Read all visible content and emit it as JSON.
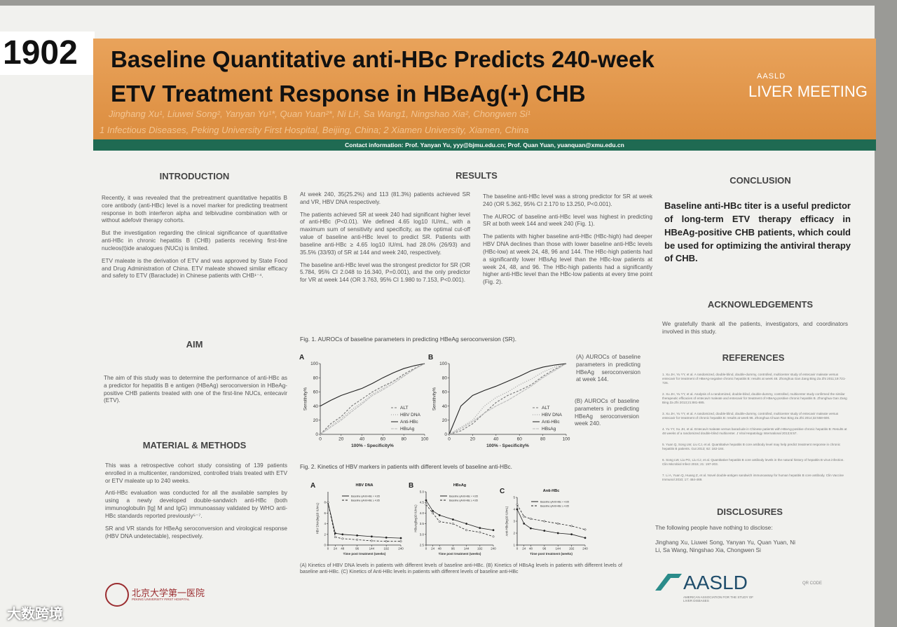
{
  "poster_number": "1902",
  "header": {
    "title_line1": "Baseline Quantitative anti-HBc Predicts 240-week",
    "title_line2": "ETV Treatment Response in HBeAg(+) CHB",
    "authors": "Jinghang Xu¹, Liuwei Song², Yanyan Yu¹*, Quan Yuan²*, Ni Li¹, Sa Wang1, Ningshao Xia², Chongwen Si¹",
    "affiliations": "1 Infectious Diseases, Peking University First Hospital, Beijing, China; 2 Xiamen University, Xiamen, China",
    "contact": "Contact information: Prof. Yanyan Yu, yyy@bjmu.edu.cn; Prof. Quan Yuan, yuanquan@xmu.edu.cn",
    "logo_line1": "AASLD",
    "logo_line2": "LIVER MEETING"
  },
  "introduction": {
    "heading": "INTRODUCTION",
    "paragraphs": [
      "Recently, it was revealed that the pretreatment quantitative hepatitis B core antibody (anti-HBc) level is a novel marker for predicting treatment response in both interferon alpha and telbivudine combination with or without adefovir therapy cohorts.",
      "But the investigation regarding the clinical significance of quantitative anti-HBc in chronic hepatitis B (CHB) patients receiving first-line nucleos(t)ide analogues (NUCs) is limited.",
      "ETV maleate is the derivation of ETV and was approved by State Food and Drug Administration of China. ETV maleate showed similar efficacy and safety  to ETV (Baraclude) in Chinese patients with CHB¹⁻⁴."
    ]
  },
  "aim": {
    "heading": "AIM",
    "paragraphs": [
      "The aim of this study was to determine the performance of anti-HBc as a predictor for hepatitis B e antigen (HBeAg) seroconversion in HBeAg-positive CHB patients treated with one of the first-line NUCs, entecavir (ETV)."
    ]
  },
  "methods": {
    "heading": "MATERIAL & METHODS",
    "paragraphs": [
      "This was a retrospective cohort study consisting of 139 patients enrolled in a multicenter, randomized, controlled trials treated with ETV or ETV maleate up to 240 weeks.",
      "Anti-HBc evaluation was conducted for all the available samples by using a newly developed double-sandwich anti-HBc (both immunoglobulin [Ig] M and IgG) immunoassay validated by WHO anti-HBc standards reported previously⁵⁻⁷.",
      "SR and VR stands for HBeAg seroconversion and virological response (HBV DNA undetectable), respectively."
    ]
  },
  "results": {
    "heading": "RESULTS",
    "col1": [
      "At week 240, 35(25.2%) and 113 (81.3%) patients achieved SR and VR, HBV DNA  respectively.",
      "The patients achieved SR at week 240 had significant higher level of anti-HBc (P<0.01). We defined 4.65 log10 IU/mL, with a maximum sum of sensitivity and specificity, as the optimal cut-off value of baseline anti-HBc level to predict SR. Patients with baseline anti-HBc ≥ 4.65 log10 IU/mL had 28.0% (26/93) and 35.5% (33/93) of SR at 144 and week 240, respectively.",
      "The baseline anti-HBc level was the strongest predictor for SR (OR 5.784, 95% CI 2.048 to 16.340, P=0.001), and the only predictor for VR at week 144 (OR 3.763, 95% CI 1.980 to 7.153, P<0.001)."
    ],
    "col2": [
      "The baseline anti-HBc level was a strong predictor for SR at week 240 (OR 5.362, 95% CI 2.170 to 13.250, P<0.001).",
      "The AUROC of baseline anti-HBc level was highest in predicting SR at both week 144 and week 240 (Fig. 1).",
      "The patients with higher baseline anti-HBc (HBc-high) had deeper HBV DNA declines than those with lower baseline anti-HBc levels (HBc-low) at week 24, 48, 96 and 144. The HBc-high patients had a significantly lower HBsAg level than the HBc-low patients at week 24, 48, and 96. The HBc-high patients had a significantly higher anti-HBc level than the HBc-low patients at every time point (Fig. 2)."
    ],
    "fig1": {
      "caption": "Fig. 1. AUROCs of baseline parameters in predicting HBeAg seroconversion (SR).",
      "note_a": "(A) AUROCs of baseline parameters in predicting HBeAg seroconversion at week 144.",
      "note_b": "(B) AUROCs of baseline parameters in predicting HBeAg seroconversion week 240.",
      "panels": [
        {
          "letter": "A",
          "x_label": "100% - Specificity%",
          "y_label": "Sensitivity%",
          "xlim": [
            0,
            100
          ],
          "ylim": [
            0,
            100
          ],
          "xticks": [
            0,
            20,
            40,
            60,
            80,
            100
          ],
          "yticks": [
            0,
            20,
            40,
            60,
            80,
            100
          ],
          "x": [
            0,
            10,
            20,
            30,
            40,
            50,
            60,
            70,
            80,
            90,
            100
          ],
          "series": [
            {
              "name": "ALT",
              "color": "#777777",
              "dash": "3,2",
              "values": [
                0,
                15,
                25,
                40,
                50,
                60,
                68,
                75,
                85,
                93,
                100
              ]
            },
            {
              "name": "HBV DNA",
              "color": "#999999",
              "dash": "1,2",
              "values": [
                0,
                12,
                22,
                35,
                45,
                57,
                65,
                75,
                83,
                92,
                100
              ]
            },
            {
              "name": "Anti-HBc",
              "color": "#222222",
              "dash": "none",
              "values": [
                40,
                48,
                55,
                60,
                65,
                72,
                80,
                87,
                93,
                97,
                100
              ]
            },
            {
              "name": "HBsAg",
              "color": "#bbbbbb",
              "dash": "4,1",
              "values": [
                0,
                10,
                20,
                32,
                43,
                55,
                63,
                72,
                82,
                92,
                100
              ]
            }
          ]
        },
        {
          "letter": "B",
          "x_label": "100% - Specificity%",
          "y_label": "Sensitivity%",
          "xlim": [
            0,
            100
          ],
          "ylim": [
            0,
            100
          ],
          "xticks": [
            0,
            20,
            40,
            60,
            80,
            100
          ],
          "yticks": [
            0,
            20,
            40,
            60,
            80,
            100
          ],
          "x": [
            0,
            10,
            20,
            30,
            40,
            50,
            60,
            70,
            80,
            90,
            100
          ],
          "series": [
            {
              "name": "ALT",
              "color": "#777777",
              "dash": "3,2",
              "values": [
                0,
                5,
                15,
                30,
                45,
                55,
                62,
                70,
                82,
                92,
                100
              ]
            },
            {
              "name": "HBV DNA",
              "color": "#999999",
              "dash": "1,2",
              "values": [
                0,
                10,
                20,
                40,
                52,
                60,
                70,
                78,
                88,
                95,
                100
              ]
            },
            {
              "name": "Anti-HBc",
              "color": "#222222",
              "dash": "none",
              "values": [
                0,
                40,
                55,
                62,
                68,
                75,
                82,
                90,
                95,
                98,
                100
              ]
            },
            {
              "name": "HBsAg",
              "color": "#bbbbbb",
              "dash": "4,1",
              "values": [
                0,
                8,
                18,
                30,
                40,
                48,
                58,
                68,
                80,
                90,
                100
              ]
            }
          ]
        }
      ]
    },
    "fig2": {
      "caption": "Fig. 2. Kinetics of HBV markers in patients with different levels of baseline anti-HBc.",
      "footnote": "(A) Kinetics of HBV DNA levels in patients with different levels of baseline anti-HBc. (B) Kinetics of HBsAg levels in patients with different levels of baseline anti-HBc. (C) Kinetics of Anti-HBc levels in patients with different levels of baseline anti-HBc",
      "panels": [
        {
          "letter": "A",
          "title": "HBV DNA",
          "x_label": "Time post treatment (weeks)",
          "y_label": "HBV DNA(log10 IU/mL)",
          "xlim": [
            0,
            240
          ],
          "ylim": [
            0,
            10
          ],
          "xticks": [
            0,
            24,
            48,
            96,
            144,
            192,
            240
          ],
          "yticks": [
            0,
            2,
            4,
            6,
            8
          ],
          "x": [
            0,
            24,
            48,
            96,
            144,
            192,
            240
          ],
          "series": [
            {
              "name": "Baseline qAnti-HBc < 4.65",
              "color": "#222222",
              "dash": "none",
              "values": [
                8,
                2.2,
                2,
                1.8,
                1.6,
                1.4,
                1.3
              ]
            },
            {
              "name": "Baseline qAnti-HBc ≥ 4.65",
              "color": "#222222",
              "dash": "3,2",
              "values": [
                8,
                1.5,
                1.2,
                1,
                0.8,
                0.7,
                0.7
              ]
            }
          ]
        },
        {
          "letter": "B",
          "title": "HBsAg",
          "x_label": "Time post treatment (weeks)",
          "y_label": "HBsAg(log10 IU/mL)",
          "xlim": [
            0,
            240
          ],
          "ylim": [
            2.5,
            5
          ],
          "xticks": [
            0,
            24,
            48,
            96,
            144,
            192,
            240
          ],
          "yticks": [
            2.5,
            {
              "value": 3,
              "label": "3.0"
            },
            3.5,
            {
              "value": 4,
              "label": "4.0"
            },
            4.5,
            {
              "value": 5,
              "label": "5.0"
            }
          ],
          "x": [
            0,
            24,
            48,
            96,
            144,
            192,
            240
          ],
          "series": [
            {
              "name": "Baseline qAnti-HBc < 4.65",
              "color": "#222222",
              "dash": "none",
              "values": [
                4.6,
                4.1,
                3.9,
                3.7,
                3.5,
                3.3,
                3.2
              ]
            },
            {
              "name": "Baseline qAnti-HBc ≥ 4.65",
              "color": "#222222",
              "dash": "3,2",
              "values": [
                4.4,
                4,
                3.6,
                3.5,
                3.2,
                3.1,
                2.9
              ]
            }
          ]
        },
        {
          "letter": "C",
          "title": "Anti-HBc",
          "x_label": "Time post treatment (weeks)",
          "y_label": "Anti-HBc(log10 IU/mL)",
          "xlim": [
            0,
            240
          ],
          "ylim": [
            1,
            5
          ],
          "xticks": [
            0,
            24,
            48,
            96,
            144,
            192,
            240
          ],
          "yticks": [
            1,
            2,
            3,
            4,
            5
          ],
          "x": [
            0,
            24,
            48,
            96,
            144,
            192,
            240
          ],
          "series": [
            {
              "name": "Baseline qAnti-HBc < 4.65",
              "color": "#222222",
              "dash": "none",
              "values": [
                4,
                2.8,
                2.4,
                2.2,
                2,
                1.9,
                1.6
              ]
            },
            {
              "name": "Baseline qAnti-HBc ≥ 4.65",
              "color": "#222222",
              "dash": "3,2",
              "values": [
                4.4,
                3.4,
                3.2,
                3,
                2.8,
                2.6,
                2.3
              ]
            }
          ]
        }
      ]
    }
  },
  "conclusion": {
    "heading": "CONCLUSION",
    "text": "Baseline anti-HBc titer is a useful predictor of long-term ETV therapy efficacy in HBeAg-positive CHB patients, which could be used for optimizing the antiviral therapy of CHB."
  },
  "acknowledgements": {
    "heading": "ACKNOWLEDGEMENTS",
    "text": "We gratefully thank all the patients, investigators, and coordinators involved in this study."
  },
  "references": {
    "heading": "REFERENCES",
    "items": [
      "1.  Xu JH, Yu YY, et al. A randomized, double-blind, double-dummy, controlled, multicenter study of entecavir maleate versus entecavir for treatment of HBeAg-negative chronic hepatitis B: results at week 48. Zhonghua Gan Zang Bing Za Zhi 2011;19:721-726.",
      "2.  Xu JH, Yu YY, et al. Analysis of a randomized, double-blind, double-dummy, controlled, multicenter study confirmed the similar therapeutic efficacies of entecavir maleate and entecavir for treatment of HBeAg-positive chronic hepatitis B. Zhonghua Gan Zang Bing Za Zhi 2013;21:881-885.",
      "3.  Xu JH, Yu YY, et al. A randomized, double-blind, double-dummy, controlled, multicenter study of entecavir maleate versus entecavir for treatment of chronic hepatitis B: results at week 96. Zhonghua Chuan Ran Bing Za Zhi 2014;32:558-600.",
      "4.  Yu YY, Xu JH, et al. Entecavir maleate versus baraclude in Chinese patients with HBeAg-positive chronic hepatitis B: Results at 48 weeks of a randomized double-blind multicenter. J Viral Hepatology International 2013;6:57.",
      "5.  Yuan Q, Song LW, Liu CJ, et al. Quantitative hepatitis B core antibody level may help predict treatment response in chronic hepatitis B patients. Gut 2013; 62: 182-184.",
      "6.  Song LW, Liu PG, Liu CJ, et al. Quantitative hepatitis B core antibody levels in the natural history of hepatitis B virus infection. Clin Microbiol Infect 2015; 21: 197-203.",
      "7.  Li A, Yuan Q, Huang Z, et al. Novel double-antigen sandwich immunoassay for human hepatitis B core antibody. Clin Vaccine Immunol 2010; 17: 464-469."
    ]
  },
  "disclosures": {
    "heading": "DISCLOSURES",
    "text": "The following people have nothing to disclose:",
    "names": "Jinghang Xu, Liuwei Song, Yanyan Yu, Quan Yuan, Ni Li, Sa Wang, Ningshao Xia, Chongwen Si"
  },
  "footer": {
    "university": "北京大学第一医院",
    "university_en": "PEKING UNIVERSITY FIRST HOSPITAL",
    "aasld": "AASLD",
    "aasld_sub": "AMERICAN ASSOCIATION FOR THE STUDY OF LIVER DISEASES",
    "qr": "QR CODE",
    "watermark": "大数跨境"
  }
}
